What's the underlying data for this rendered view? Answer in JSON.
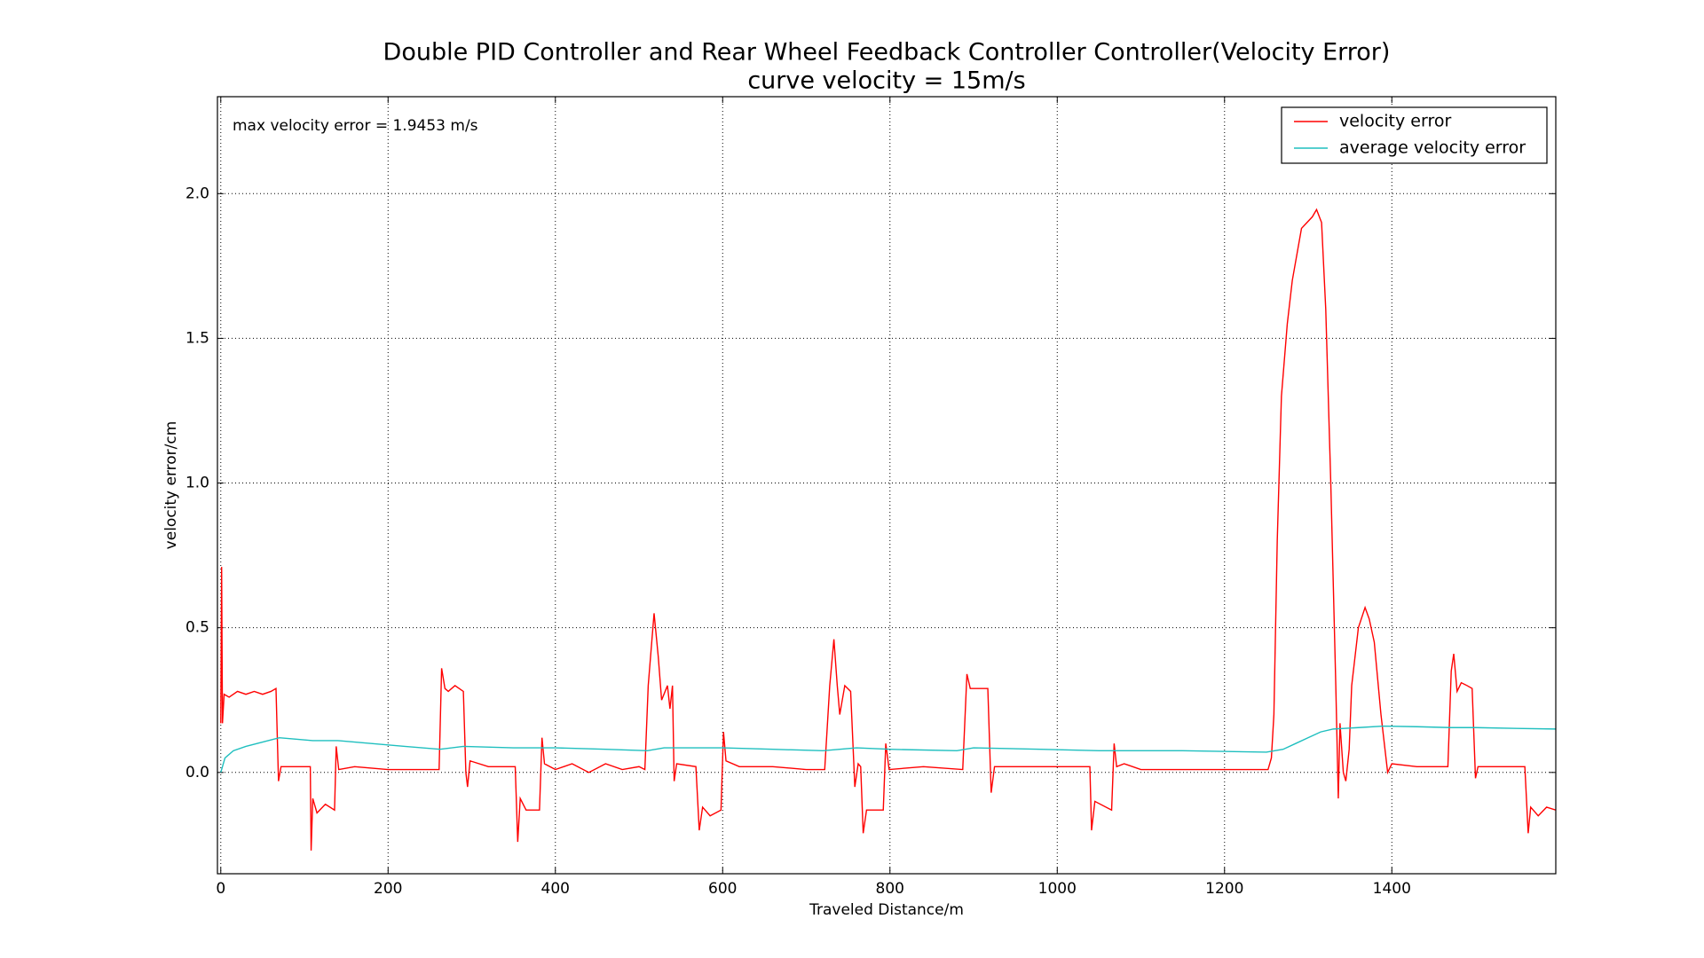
{
  "chart_data": {
    "type": "line",
    "title": "Double PID Controller and Rear Wheel Feedback Controller Controller(Velocity Error)",
    "subtitle": "curve velocity = 15m/s",
    "x_label": "Traveled Distance/m",
    "y_label": "velocity error/cm",
    "annotation": "max velocity error = 1.9453 m/s",
    "xlim": [
      -4,
      1596
    ],
    "ylim": [
      -0.35,
      2.335
    ],
    "xticks": [
      0,
      200,
      400,
      600,
      800,
      1000,
      1200,
      1400
    ],
    "yticks": [
      {
        "value": 0,
        "label": "0.0"
      },
      0.5,
      {
        "value": 1,
        "label": "1.0"
      },
      1.5,
      {
        "value": 2,
        "label": "2.0"
      }
    ],
    "grid": true,
    "legend": "upper right",
    "series": [
      {
        "name": "velocity error",
        "color": "#ff0000",
        "x": [
          0,
          1,
          2,
          4,
          10,
          20,
          30,
          40,
          50,
          60,
          66,
          69,
          72,
          90,
          107,
          108,
          110,
          115,
          125,
          136,
          138,
          141,
          160,
          200,
          240,
          261,
          264,
          268,
          272,
          280,
          290,
          293,
          295,
          298,
          320,
          352,
          355,
          358,
          365,
          381,
          384,
          387,
          400,
          420,
          440,
          460,
          480,
          500,
          507,
          511,
          518,
          523,
          527,
          534,
          537,
          540,
          542,
          545,
          568,
          572,
          576,
          585,
          598,
          601,
          604,
          620,
          660,
          700,
          722,
          728,
          733,
          737,
          740,
          746,
          753,
          758,
          762,
          765,
          768,
          772,
          792,
          795,
          799,
          840,
          887,
          892,
          896,
          917,
          921,
          925,
          980,
          1039,
          1041,
          1045,
          1065,
          1068,
          1071,
          1080,
          1100,
          1150,
          1200,
          1252,
          1256,
          1259,
          1263,
          1268,
          1275,
          1281,
          1292,
          1305,
          1310,
          1316,
          1321,
          1327,
          1333,
          1336,
          1338,
          1342,
          1345,
          1349,
          1352,
          1360,
          1368,
          1373,
          1379,
          1387,
          1395,
          1400,
          1430,
          1467,
          1471,
          1474,
          1478,
          1483,
          1490,
          1496,
          1500,
          1503,
          1530,
          1559,
          1563,
          1566,
          1575,
          1585,
          1596
        ],
        "values": [
          0.17,
          0.71,
          0.17,
          0.27,
          0.26,
          0.28,
          0.27,
          0.28,
          0.27,
          0.28,
          0.29,
          -0.03,
          0.02,
          0.02,
          0.02,
          -0.27,
          -0.09,
          -0.14,
          -0.11,
          -0.13,
          0.09,
          0.01,
          0.02,
          0.01,
          0.01,
          0.01,
          0.36,
          0.29,
          0.28,
          0.3,
          0.28,
          0.0,
          -0.05,
          0.04,
          0.02,
          0.02,
          -0.24,
          -0.09,
          -0.13,
          -0.13,
          0.12,
          0.03,
          0.01,
          0.03,
          0.0,
          0.03,
          0.01,
          0.02,
          0.01,
          0.3,
          0.55,
          0.4,
          0.25,
          0.3,
          0.22,
          0.3,
          -0.03,
          0.03,
          0.02,
          -0.2,
          -0.12,
          -0.15,
          -0.13,
          0.14,
          0.04,
          0.02,
          0.02,
          0.01,
          0.01,
          0.3,
          0.46,
          0.3,
          0.2,
          0.3,
          0.28,
          -0.05,
          0.03,
          0.02,
          -0.21,
          -0.13,
          -0.13,
          0.1,
          0.01,
          0.02,
          0.01,
          0.34,
          0.29,
          0.29,
          -0.07,
          0.02,
          0.02,
          0.02,
          -0.2,
          -0.1,
          -0.13,
          0.1,
          0.02,
          0.03,
          0.01,
          0.01,
          0.01,
          0.01,
          0.05,
          0.2,
          0.8,
          1.3,
          1.55,
          1.7,
          1.88,
          1.92,
          1.945,
          1.9,
          1.6,
          1.0,
          0.3,
          -0.09,
          0.17,
          0.0,
          -0.03,
          0.08,
          0.3,
          0.5,
          0.57,
          0.53,
          0.45,
          0.2,
          0.0,
          0.03,
          0.02,
          0.02,
          0.35,
          0.41,
          0.28,
          0.31,
          0.3,
          0.29,
          -0.02,
          0.02,
          0.02,
          0.02,
          -0.21,
          -0.12,
          -0.15,
          -0.12,
          -0.13
        ]
      },
      {
        "name": "average velocity error",
        "color": "#1fbfbf",
        "x": [
          0,
          5,
          15,
          30,
          50,
          70,
          90,
          110,
          140,
          180,
          220,
          262,
          290,
          350,
          400,
          460,
          510,
          530,
          600,
          660,
          720,
          760,
          800,
          880,
          900,
          980,
          1050,
          1150,
          1250,
          1270,
          1285,
          1300,
          1315,
          1330,
          1360,
          1390,
          1430,
          1470,
          1500,
          1550,
          1596
        ],
        "values": [
          0,
          0.05,
          0.075,
          0.09,
          0.105,
          0.12,
          0.115,
          0.11,
          0.11,
          0.1,
          0.09,
          0.08,
          0.09,
          0.085,
          0.085,
          0.08,
          0.075,
          0.085,
          0.085,
          0.08,
          0.075,
          0.085,
          0.08,
          0.075,
          0.085,
          0.08,
          0.075,
          0.075,
          0.07,
          0.08,
          0.1,
          0.12,
          0.14,
          0.15,
          0.155,
          0.16,
          0.158,
          0.155,
          0.155,
          0.152,
          0.15
        ]
      }
    ]
  }
}
